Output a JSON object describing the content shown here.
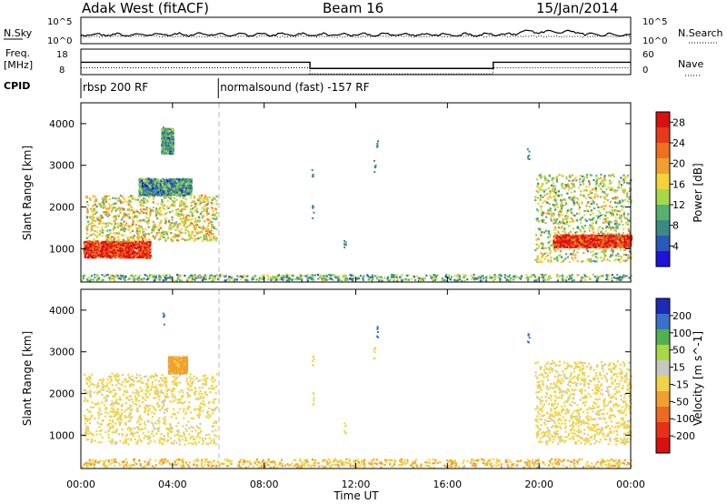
{
  "header": {
    "station": "Adak West (fitACF)",
    "beam": "Beam 16",
    "date": "15/Jan/2014"
  },
  "strips": {
    "left_labels": {
      "nsky": "N.Sky",
      "freq_line1": "Freq.",
      "freq_line2": "[MHz]",
      "cpid": "CPID"
    },
    "right_labels": {
      "nsearch": "N.Search",
      "nave": "Nave"
    },
    "noise_ticks": [
      "10^5",
      "10^0"
    ],
    "freq_ticks": [
      "18",
      "8"
    ],
    "nave_ticks": [
      "60",
      "0"
    ],
    "cpid_segments": [
      {
        "start_h": 0,
        "end_h": 6,
        "label": "rbsp 200 RF"
      },
      {
        "start_h": 6,
        "end_h": 24,
        "label": "normalsound (fast) -157 RF"
      }
    ],
    "freq_steps": [
      {
        "start_h": 0,
        "end_h": 10,
        "freq_mhz": 13.2
      },
      {
        "start_h": 10,
        "end_h": 18,
        "freq_mhz": 10.6
      },
      {
        "start_h": 18,
        "end_h": 24,
        "freq_mhz": 13.2
      }
    ]
  },
  "chart_data": [
    {
      "type": "heatmap",
      "name": "power",
      "ylabel": "Slant Range [km]",
      "yticks": [
        "1000",
        "2000",
        "3000",
        "4000"
      ],
      "ylim": [
        200,
        4500
      ],
      "xlim": [
        0,
        24
      ],
      "colorbar": {
        "label": "Power [dB]",
        "ticks": [
          "4",
          "8",
          "12",
          "16",
          "20",
          "24",
          "28"
        ],
        "colors": [
          "#1c14d8",
          "#2a5ab8",
          "#3a8a86",
          "#58b070",
          "#a8d848",
          "#f4d23a",
          "#f0a030",
          "#ee7020",
          "#e83a1a",
          "#d81010"
        ]
      },
      "regions": [
        {
          "t0": 0.1,
          "t1": 3.0,
          "r0": 800,
          "r1": 1200,
          "level": 28
        },
        {
          "t0": 0.2,
          "t1": 5.9,
          "r0": 1200,
          "r1": 2300,
          "level": 16
        },
        {
          "t0": 2.5,
          "t1": 4.8,
          "r0": 2300,
          "r1": 2700,
          "level": 8
        },
        {
          "t0": 3.5,
          "t1": 4.0,
          "r0": 3300,
          "r1": 3900,
          "level": 8
        },
        {
          "t0": 19.8,
          "t1": 24,
          "r0": 700,
          "r1": 2800,
          "level": 14
        },
        {
          "t0": 20.6,
          "t1": 24,
          "r0": 1050,
          "r1": 1350,
          "level": 28
        },
        {
          "t0": 0,
          "t1": 24,
          "r0": 250,
          "r1": 400,
          "level": 10
        }
      ]
    },
    {
      "type": "heatmap",
      "name": "velocity",
      "ylabel": "Slant Range [km]",
      "yticks": [
        "1000",
        "2000",
        "3000",
        "4000"
      ],
      "ylim": [
        200,
        4500
      ],
      "xlim": [
        0,
        24
      ],
      "xticks": [
        "00:00",
        "04:00",
        "08:00",
        "12:00",
        "16:00",
        "20:00",
        "00:00"
      ],
      "xlabel": "Time UT",
      "colorbar": {
        "label": "Velocity [m s^-1]",
        "ticks": [
          "200",
          "100",
          "50",
          "15",
          "-15",
          "-50",
          "-100",
          "-200"
        ],
        "colors": [
          "#1c2ab8",
          "#3a70c8",
          "#52b052",
          "#a8d848",
          "#c8c8c0",
          "#f0d448",
          "#f0a030",
          "#ee6a20",
          "#e83018",
          "#d81010"
        ]
      },
      "regions": [
        {
          "t0": 0.1,
          "t1": 5.9,
          "r0": 800,
          "r1": 2500,
          "level": 0
        },
        {
          "t0": 3.8,
          "t1": 4.6,
          "r0": 2500,
          "r1": 2900,
          "level": -60
        },
        {
          "t0": 19.8,
          "t1": 24,
          "r0": 800,
          "r1": 2800,
          "level": 0
        },
        {
          "t0": 0,
          "t1": 24,
          "r0": 250,
          "r1": 450,
          "level": -40
        }
      ]
    }
  ]
}
